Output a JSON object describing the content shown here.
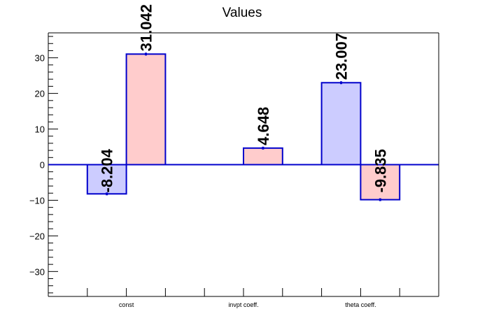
{
  "chart_data": {
    "type": "bar",
    "title": "Values",
    "categories": [
      "const",
      "invpt coeff.",
      "theta coeff."
    ],
    "series": [
      {
        "fill": "#ccccff",
        "stroke": "#0000cc",
        "values": [
          -8.204,
          null,
          23.007
        ]
      },
      {
        "fill": "#ffcccc",
        "stroke": "#0000cc",
        "values": [
          31.042,
          4.648,
          -9.835
        ]
      }
    ],
    "data_labels": [
      "-8.204",
      "31.042",
      "4.648",
      "23.007",
      "-9.835"
    ],
    "ylim": [
      -37,
      37
    ],
    "yticks": [
      -30,
      -20,
      -10,
      0,
      10,
      20,
      30
    ],
    "ytick_labels": [
      "−30",
      "−20",
      "−10",
      "0",
      "10",
      "20",
      "30"
    ],
    "grid": false,
    "legend": "none",
    "xlabel": "",
    "ylabel": "",
    "zero_line_color": "#0000cc"
  }
}
